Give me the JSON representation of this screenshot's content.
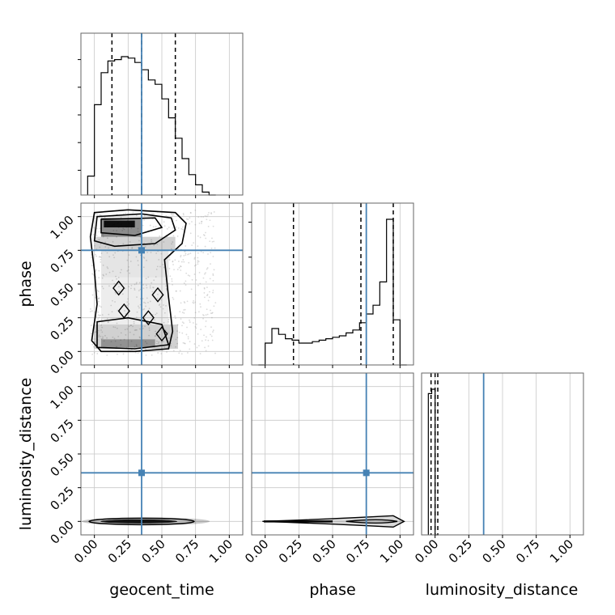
{
  "chart_data": {
    "type": "corner",
    "parameters": [
      "geocent_time",
      "phase",
      "luminosity_distance"
    ],
    "axis_range": [
      -0.1,
      1.1
    ],
    "ticks": [
      0.0,
      0.25,
      0.5,
      0.75,
      1.0
    ],
    "tick_labels": [
      "0.00",
      "0.25",
      "0.50",
      "0.75",
      "1.00"
    ],
    "grid": true,
    "injection_values": {
      "geocent_time": 0.35,
      "phase": 0.75,
      "luminosity_distance": 0.36
    },
    "quantiles": {
      "geocent_time": [
        0.13,
        0.35,
        0.6
      ],
      "phase": [
        0.21,
        0.71,
        0.95
      ],
      "luminosity_distance": [
        -0.03,
        0.0,
        0.02
      ]
    },
    "histograms": {
      "geocent_time": {
        "bin_edges": [
          -0.05,
          0.0,
          0.05,
          0.1,
          0.15,
          0.2,
          0.25,
          0.3,
          0.35,
          0.4,
          0.45,
          0.5,
          0.55,
          0.6,
          0.65,
          0.7,
          0.75,
          0.8,
          0.85,
          0.9
        ],
        "counts": [
          0.13,
          0.62,
          0.84,
          0.92,
          0.93,
          0.95,
          0.94,
          0.91,
          0.86,
          0.79,
          0.76,
          0.66,
          0.53,
          0.39,
          0.25,
          0.14,
          0.07,
          0.02,
          0.0
        ]
      },
      "phase": {
        "bin_edges": [
          -0.05,
          0.0,
          0.05,
          0.1,
          0.15,
          0.2,
          0.25,
          0.3,
          0.35,
          0.4,
          0.45,
          0.5,
          0.55,
          0.6,
          0.65,
          0.7,
          0.75,
          0.8,
          0.85,
          0.9,
          0.95,
          1.0,
          1.05
        ],
        "counts": [
          0.0,
          0.15,
          0.25,
          0.21,
          0.18,
          0.17,
          0.15,
          0.15,
          0.16,
          0.17,
          0.18,
          0.19,
          0.2,
          0.22,
          0.24,
          0.29,
          0.35,
          0.41,
          0.57,
          1.0,
          0.31,
          0.0
        ]
      },
      "luminosity_distance": {
        "bin_edges": [
          -0.05,
          -0.025,
          0.0,
          0.025
        ],
        "counts": [
          0.97,
          1.0,
          0.0
        ]
      }
    }
  }
}
